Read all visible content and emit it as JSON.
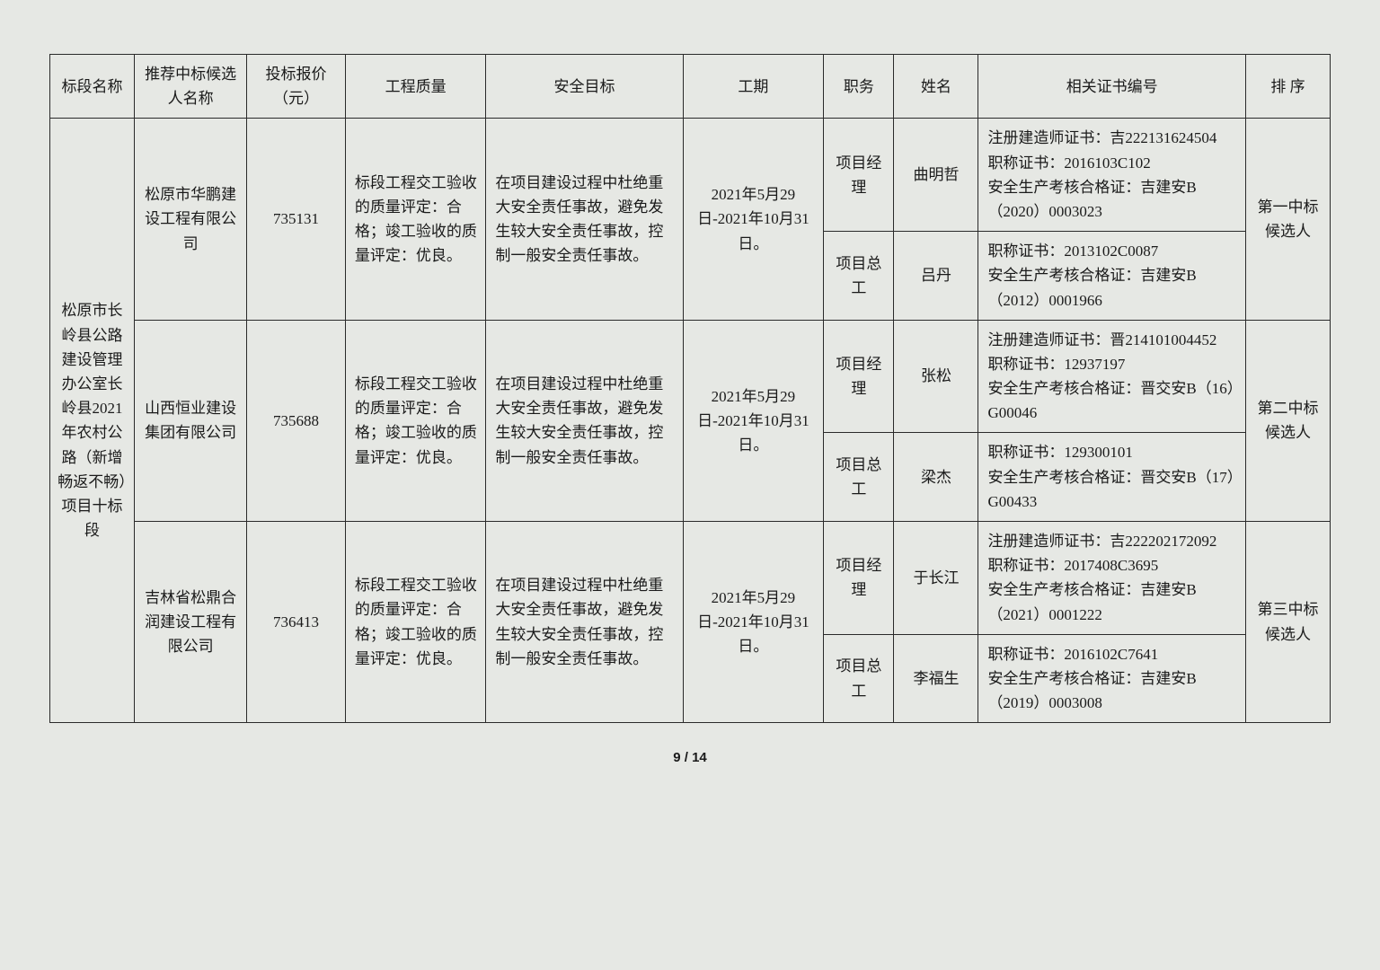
{
  "headers": {
    "section": "标段名称",
    "company": "推荐中标候选人名称",
    "price": "投标报价（元）",
    "quality": "工程质量",
    "safety": "安全目标",
    "period": "工期",
    "role": "职务",
    "name": "姓名",
    "cert": "相关证书编号",
    "rank": "排 序"
  },
  "section_name": "松原市长岭县公路建设管理办公室长岭县2021年农村公路（新增畅返不畅）项目十标段",
  "bidders": [
    {
      "company": "松原市华鹏建设工程有限公司",
      "price": "735131",
      "quality": "标段工程交工验收的质量评定：合格；竣工验收的质量评定：优良。",
      "safety": "在项目建设过程中杜绝重大安全责任事故，避免发生较大安全责任事故，控制一般安全责任事故。",
      "period": "2021年5月29日-2021年10月31日。",
      "rank": "第一中标候选人",
      "staff": [
        {
          "role": "项目经理",
          "name": "曲明哲",
          "cert": "注册建造师证书：吉222131624504\n职称证书：2016103C102\n安全生产考核合格证：吉建安B（2020）0003023"
        },
        {
          "role": "项目总工",
          "name": "吕丹",
          "cert": "职称证书：2013102C0087\n安全生产考核合格证：吉建安B（2012）0001966"
        }
      ]
    },
    {
      "company": "山西恒业建设集团有限公司",
      "price": "735688",
      "quality": "标段工程交工验收的质量评定：合格；竣工验收的质量评定：优良。",
      "safety": "在项目建设过程中杜绝重大安全责任事故，避免发生较大安全责任事故，控制一般安全责任事故。",
      "period": "2021年5月29日-2021年10月31日。",
      "rank": "第二中标候选人",
      "staff": [
        {
          "role": "项目经理",
          "name": "张松",
          "cert": "注册建造师证书：晋214101004452\n职称证书：12937197\n安全生产考核合格证：晋交安B（16）G00046"
        },
        {
          "role": "项目总工",
          "name": "梁杰",
          "cert": "职称证书：129300101\n安全生产考核合格证：晋交安B（17）G00433"
        }
      ]
    },
    {
      "company": "吉林省松鼎合润建设工程有限公司",
      "price": "736413",
      "quality": "标段工程交工验收的质量评定：合格；竣工验收的质量评定：优良。",
      "safety": "在项目建设过程中杜绝重大安全责任事故，避免发生较大安全责任事故，控制一般安全责任事故。",
      "period": "2021年5月29日-2021年10月31日。",
      "rank": "第三中标候选人",
      "staff": [
        {
          "role": "项目经理",
          "name": "于长江",
          "cert": "注册建造师证书：吉222202172092\n职称证书：2017408C3695\n安全生产考核合格证：吉建安B（2021）0001222"
        },
        {
          "role": "项目总工",
          "name": "李福生",
          "cert": "职称证书：2016102C7641\n安全生产考核合格证：吉建安B（2019）0003008"
        }
      ]
    }
  ],
  "footer": "9 / 14"
}
